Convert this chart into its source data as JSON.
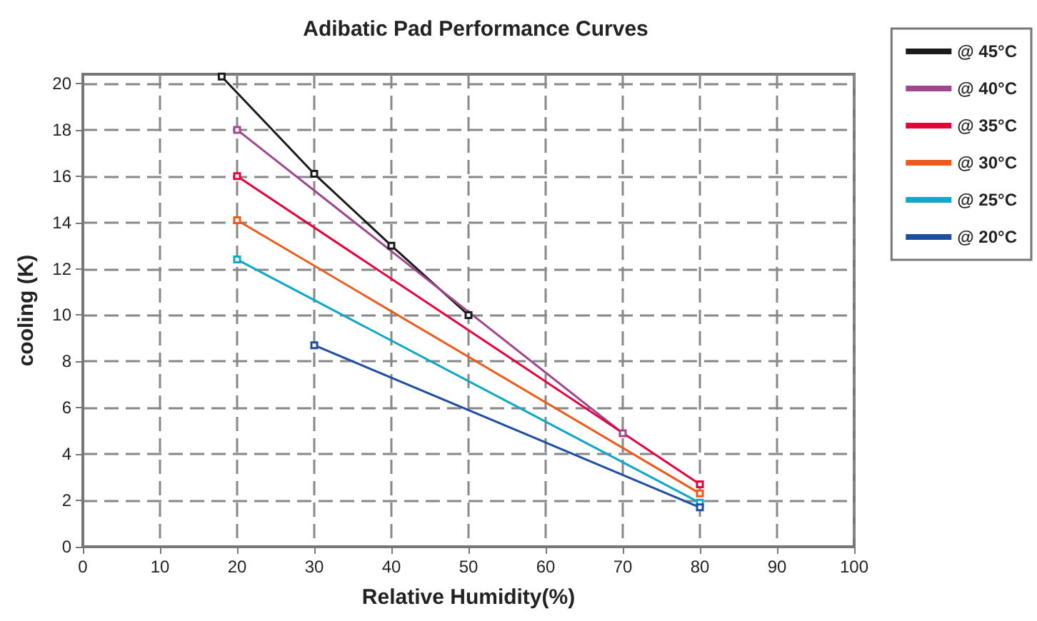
{
  "chart_data": {
    "type": "line",
    "title": "Adibatic Pad Performance Curves",
    "xlabel": "Relative Humidity(%)",
    "ylabel": "cooling (K)",
    "xlim": [
      0,
      100
    ],
    "xticks": [
      0,
      10,
      20,
      30,
      40,
      50,
      60,
      70,
      80,
      90,
      100
    ],
    "ylim": [
      0,
      20.4
    ],
    "yticks": [
      0,
      2,
      4,
      6,
      8,
      10,
      12,
      14,
      16,
      18,
      20
    ],
    "grid": true,
    "legend": "top right",
    "marker": "square",
    "line_style": "solid",
    "series": [
      {
        "name": "@ 45°C",
        "color": "#1a1a1a",
        "x": [
          18,
          30,
          40,
          50
        ],
        "values": [
          20.3,
          16.1,
          13.0,
          10
        ]
      },
      {
        "name": "@ 40°C",
        "color": "#a0468e",
        "x": [
          20,
          70
        ],
        "values": [
          18,
          4.9
        ]
      },
      {
        "name": "@ 35°C",
        "color": "#e4003a",
        "x": [
          20,
          80
        ],
        "values": [
          16,
          2.7
        ]
      },
      {
        "name": "@ 30°C",
        "color": "#ee5a1c",
        "x": [
          20,
          80
        ],
        "values": [
          14.1,
          2.3
        ]
      },
      {
        "name": "@ 25°C",
        "color": "#0fa8c8",
        "x": [
          20,
          80
        ],
        "values": [
          12.4,
          1.9
        ]
      },
      {
        "name": "@ 20°C",
        "color": "#1c4fa0",
        "x": [
          30,
          80
        ],
        "values": [
          8.7,
          1.7
        ]
      }
    ]
  }
}
